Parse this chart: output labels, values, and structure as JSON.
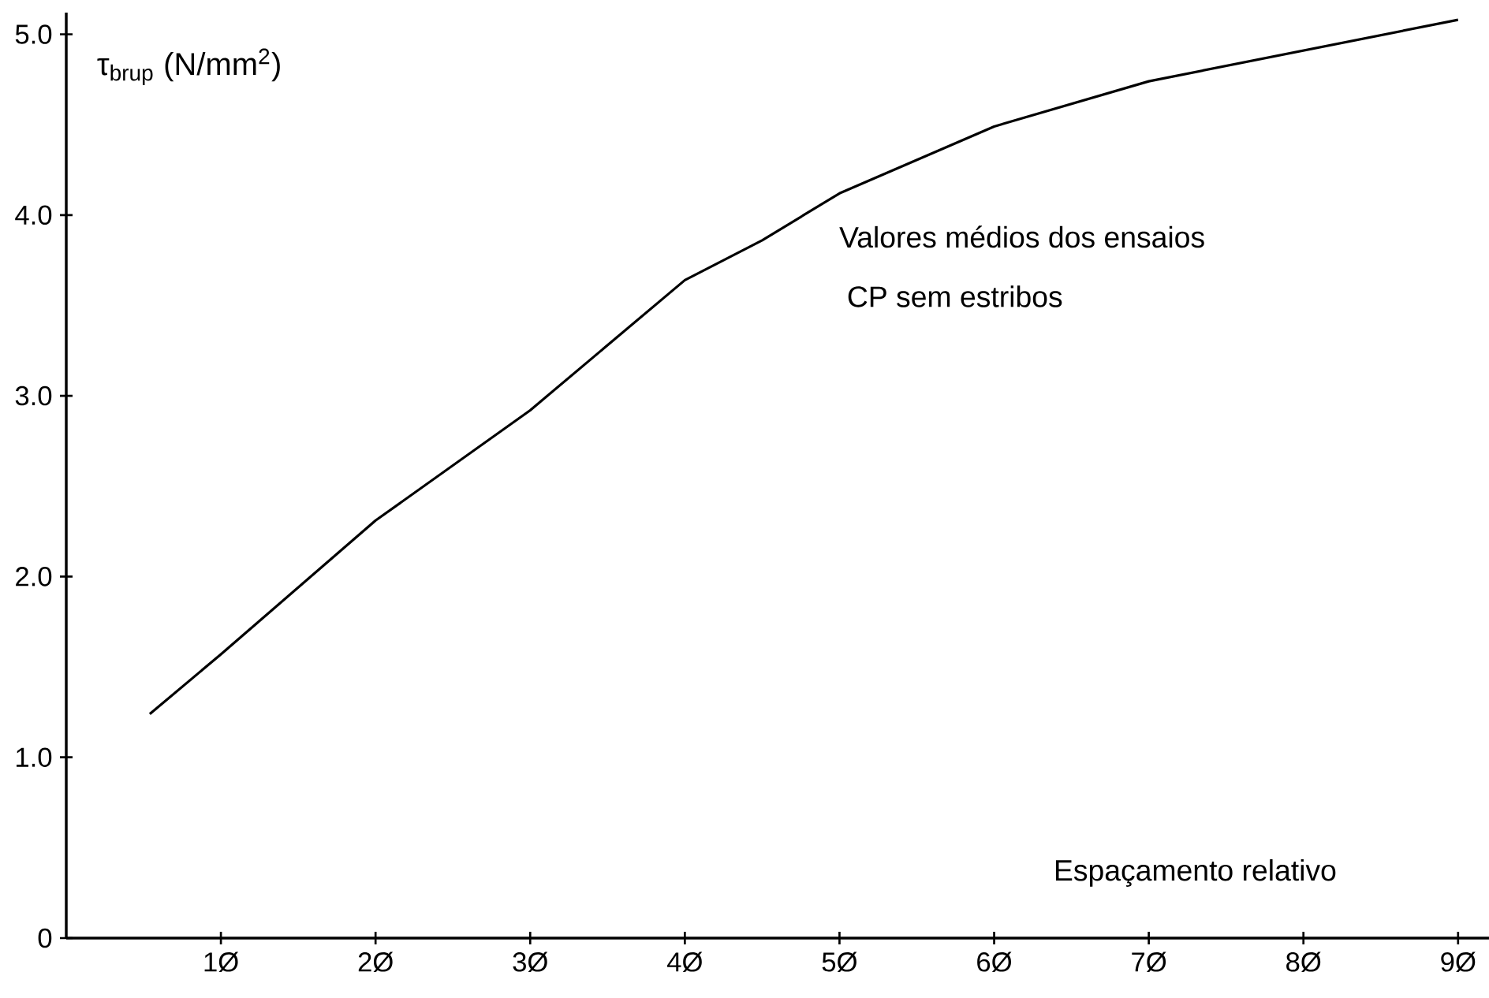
{
  "chart_data": {
    "type": "line",
    "ylabel": "τ$_{brup}$ (N/mm$^{2}$)",
    "xlabel": "Espaçamento relativo",
    "annotations": [
      "Valores médios dos ensaios",
      "CP sem estribos"
    ],
    "x": [
      0.54,
      1,
      2,
      3,
      4,
      4.5,
      5,
      6,
      7,
      8,
      9
    ],
    "series": [
      {
        "color": "#000000",
        "values": [
          1.24,
          1.57,
          2.31,
          2.92,
          3.64,
          3.86,
          4.12,
          4.49,
          4.74,
          4.91,
          5.08
        ]
      }
    ],
    "xlim": [
      0,
      9.2
    ],
    "ylim": [
      0,
      5.12
    ],
    "xticks": [
      {
        "value": 1,
        "label": "1Ø"
      },
      {
        "value": 2,
        "label": "2Ø"
      },
      {
        "value": 3,
        "label": "3Ø"
      },
      {
        "value": 4,
        "label": "4Ø"
      },
      {
        "value": 5,
        "label": "5Ø"
      },
      {
        "value": 6,
        "label": "6Ø"
      },
      {
        "value": 7,
        "label": "7Ø"
      },
      {
        "value": 8,
        "label": "8Ø"
      },
      {
        "value": 9,
        "label": "9Ø"
      }
    ],
    "yticks": [
      {
        "value": 0,
        "label": "0"
      },
      {
        "value": 1,
        "label": "1.0"
      },
      {
        "value": 2,
        "label": "2.0"
      },
      {
        "value": 3,
        "label": "3.0"
      },
      {
        "value": 4,
        "label": "4.0"
      },
      {
        "value": 5,
        "label": "5.0"
      }
    ]
  }
}
